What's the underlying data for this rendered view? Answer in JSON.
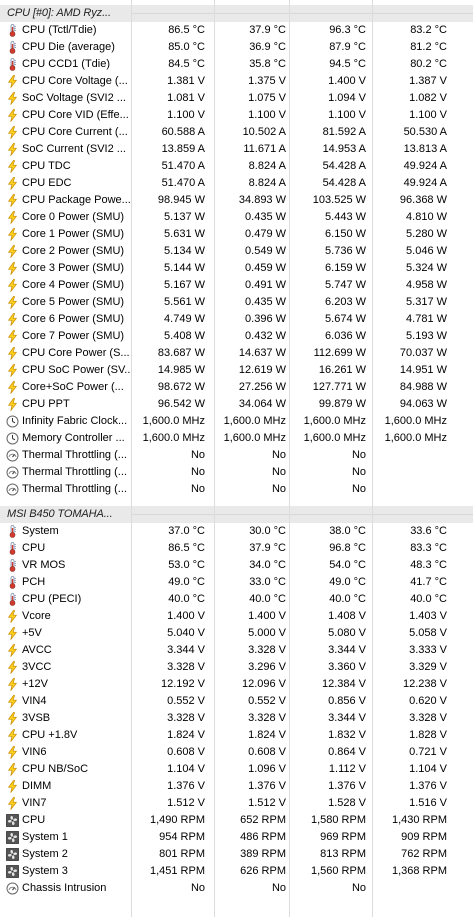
{
  "groups": [
    {
      "header": "CPU [#0]: AMD Ryz...",
      "rows": [
        {
          "icon": "thermometer-icon",
          "label": "CPU (Tctl/Tdie)",
          "values": [
            "86.5 °C",
            "37.9 °C",
            "96.3 °C",
            "83.2 °C"
          ]
        },
        {
          "icon": "thermometer-icon",
          "label": "CPU Die (average)",
          "values": [
            "85.0 °C",
            "36.9 °C",
            "87.9 °C",
            "81.2 °C"
          ]
        },
        {
          "icon": "thermometer-icon",
          "label": "CPU CCD1 (Tdie)",
          "values": [
            "84.5 °C",
            "35.8 °C",
            "94.5 °C",
            "80.2 °C"
          ]
        },
        {
          "icon": "lightning-icon",
          "label": "CPU Core Voltage (...",
          "values": [
            "1.381 V",
            "1.375 V",
            "1.400 V",
            "1.387 V"
          ]
        },
        {
          "icon": "lightning-icon",
          "label": "SoC Voltage (SVI2 ...",
          "values": [
            "1.081 V",
            "1.075 V",
            "1.094 V",
            "1.082 V"
          ]
        },
        {
          "icon": "lightning-icon",
          "label": "CPU Core VID (Effe...",
          "values": [
            "1.100 V",
            "1.100 V",
            "1.100 V",
            "1.100 V"
          ]
        },
        {
          "icon": "lightning-icon",
          "label": "CPU Core Current (...",
          "values": [
            "60.588 A",
            "10.502 A",
            "81.592 A",
            "50.530 A"
          ]
        },
        {
          "icon": "lightning-icon",
          "label": "SoC Current (SVI2 ...",
          "values": [
            "13.859 A",
            "11.671 A",
            "14.953 A",
            "13.813 A"
          ]
        },
        {
          "icon": "lightning-icon",
          "label": "CPU TDC",
          "values": [
            "51.470 A",
            "8.824 A",
            "54.428 A",
            "49.924 A"
          ]
        },
        {
          "icon": "lightning-icon",
          "label": "CPU EDC",
          "values": [
            "51.470 A",
            "8.824 A",
            "54.428 A",
            "49.924 A"
          ]
        },
        {
          "icon": "lightning-icon",
          "label": "CPU Package Powe...",
          "values": [
            "98.945 W",
            "34.893 W",
            "103.525 W",
            "96.368 W"
          ]
        },
        {
          "icon": "lightning-icon",
          "label": "Core 0 Power (SMU)",
          "values": [
            "5.137 W",
            "0.435 W",
            "5.443 W",
            "4.810 W"
          ]
        },
        {
          "icon": "lightning-icon",
          "label": "Core 1 Power (SMU)",
          "values": [
            "5.631 W",
            "0.479 W",
            "6.150 W",
            "5.280 W"
          ]
        },
        {
          "icon": "lightning-icon",
          "label": "Core 2 Power (SMU)",
          "values": [
            "5.134 W",
            "0.549 W",
            "5.736 W",
            "5.046 W"
          ]
        },
        {
          "icon": "lightning-icon",
          "label": "Core 3 Power (SMU)",
          "values": [
            "5.144 W",
            "0.459 W",
            "6.159 W",
            "5.324 W"
          ]
        },
        {
          "icon": "lightning-icon",
          "label": "Core 4 Power (SMU)",
          "values": [
            "5.167 W",
            "0.491 W",
            "5.747 W",
            "4.958 W"
          ]
        },
        {
          "icon": "lightning-icon",
          "label": "Core 5 Power (SMU)",
          "values": [
            "5.561 W",
            "0.435 W",
            "6.203 W",
            "5.317 W"
          ]
        },
        {
          "icon": "lightning-icon",
          "label": "Core 6 Power (SMU)",
          "values": [
            "4.749 W",
            "0.396 W",
            "5.674 W",
            "4.781 W"
          ]
        },
        {
          "icon": "lightning-icon",
          "label": "Core 7 Power (SMU)",
          "values": [
            "5.408 W",
            "0.432 W",
            "6.036 W",
            "5.193 W"
          ]
        },
        {
          "icon": "lightning-icon",
          "label": "CPU Core Power (S...",
          "values": [
            "83.687 W",
            "14.637 W",
            "112.699 W",
            "70.037 W"
          ]
        },
        {
          "icon": "lightning-icon",
          "label": "CPU SoC Power (SV...",
          "values": [
            "14.985 W",
            "12.619 W",
            "16.261 W",
            "14.951 W"
          ]
        },
        {
          "icon": "lightning-icon",
          "label": "Core+SoC Power (...",
          "values": [
            "98.672 W",
            "27.256 W",
            "127.771 W",
            "84.988 W"
          ]
        },
        {
          "icon": "lightning-icon",
          "label": "CPU PPT",
          "values": [
            "96.542 W",
            "34.064 W",
            "99.879 W",
            "94.063 W"
          ]
        },
        {
          "icon": "clock-icon",
          "label": "Infinity Fabric Clock...",
          "values": [
            "1,600.0 MHz",
            "1,600.0 MHz",
            "1,600.0 MHz",
            "1,600.0 MHz"
          ]
        },
        {
          "icon": "clock-icon",
          "label": "Memory Controller ...",
          "values": [
            "1,600.0 MHz",
            "1,600.0 MHz",
            "1,600.0 MHz",
            "1,600.0 MHz"
          ]
        },
        {
          "icon": "gauge-icon",
          "label": "Thermal Throttling (...",
          "values": [
            "No",
            "No",
            "No",
            ""
          ]
        },
        {
          "icon": "gauge-icon",
          "label": "Thermal Throttling (...",
          "values": [
            "No",
            "No",
            "No",
            ""
          ]
        },
        {
          "icon": "gauge-icon",
          "label": "Thermal Throttling (...",
          "values": [
            "No",
            "No",
            "No",
            ""
          ]
        }
      ]
    },
    {
      "header": "MSI B450 TOMAHA...",
      "rows": [
        {
          "icon": "thermometer-icon",
          "label": "System",
          "values": [
            "37.0 °C",
            "30.0 °C",
            "38.0 °C",
            "33.6 °C"
          ]
        },
        {
          "icon": "thermometer-icon",
          "label": "CPU",
          "values": [
            "86.5 °C",
            "37.9 °C",
            "96.8 °C",
            "83.3 °C"
          ]
        },
        {
          "icon": "thermometer-icon",
          "label": "VR MOS",
          "values": [
            "53.0 °C",
            "34.0 °C",
            "54.0 °C",
            "48.3 °C"
          ]
        },
        {
          "icon": "thermometer-icon",
          "label": "PCH",
          "values": [
            "49.0 °C",
            "33.0 °C",
            "49.0 °C",
            "41.7 °C"
          ]
        },
        {
          "icon": "thermometer-icon",
          "label": "CPU (PECI)",
          "values": [
            "40.0 °C",
            "40.0 °C",
            "40.0 °C",
            "40.0 °C"
          ]
        },
        {
          "icon": "lightning-icon",
          "label": "Vcore",
          "values": [
            "1.400 V",
            "1.400 V",
            "1.408 V",
            "1.403 V"
          ]
        },
        {
          "icon": "lightning-icon",
          "label": "+5V",
          "values": [
            "5.040 V",
            "5.000 V",
            "5.080 V",
            "5.058 V"
          ]
        },
        {
          "icon": "lightning-icon",
          "label": "AVCC",
          "values": [
            "3.344 V",
            "3.328 V",
            "3.344 V",
            "3.333 V"
          ]
        },
        {
          "icon": "lightning-icon",
          "label": "3VCC",
          "values": [
            "3.328 V",
            "3.296 V",
            "3.360 V",
            "3.329 V"
          ]
        },
        {
          "icon": "lightning-icon",
          "label": "+12V",
          "values": [
            "12.192 V",
            "12.096 V",
            "12.384 V",
            "12.238 V"
          ]
        },
        {
          "icon": "lightning-icon",
          "label": "VIN4",
          "values": [
            "0.552 V",
            "0.552 V",
            "0.856 V",
            "0.620 V"
          ]
        },
        {
          "icon": "lightning-icon",
          "label": "3VSB",
          "values": [
            "3.328 V",
            "3.328 V",
            "3.344 V",
            "3.328 V"
          ]
        },
        {
          "icon": "lightning-icon",
          "label": "CPU +1.8V",
          "values": [
            "1.824 V",
            "1.824 V",
            "1.832 V",
            "1.828 V"
          ]
        },
        {
          "icon": "lightning-icon",
          "label": "VIN6",
          "values": [
            "0.608 V",
            "0.608 V",
            "0.864 V",
            "0.721 V"
          ]
        },
        {
          "icon": "lightning-icon",
          "label": "CPU NB/SoC",
          "values": [
            "1.104 V",
            "1.096 V",
            "1.112 V",
            "1.104 V"
          ]
        },
        {
          "icon": "lightning-icon",
          "label": "DIMM",
          "values": [
            "1.376 V",
            "1.376 V",
            "1.376 V",
            "1.376 V"
          ]
        },
        {
          "icon": "lightning-icon",
          "label": "VIN7",
          "values": [
            "1.512 V",
            "1.512 V",
            "1.528 V",
            "1.516 V"
          ]
        },
        {
          "icon": "fan-icon",
          "label": "CPU",
          "values": [
            "1,490 RPM",
            "652 RPM",
            "1,580 RPM",
            "1,430 RPM"
          ]
        },
        {
          "icon": "fan-icon",
          "label": "System 1",
          "values": [
            "954 RPM",
            "486 RPM",
            "969 RPM",
            "909 RPM"
          ]
        },
        {
          "icon": "fan-icon",
          "label": "System 2",
          "values": [
            "801 RPM",
            "389 RPM",
            "813 RPM",
            "762 RPM"
          ]
        },
        {
          "icon": "fan-icon",
          "label": "System 3",
          "values": [
            "1,451 RPM",
            "626 RPM",
            "1,560 RPM",
            "1,368 RPM"
          ]
        },
        {
          "icon": "gauge-icon",
          "label": "Chassis Intrusion",
          "values": [
            "No",
            "No",
            "No",
            ""
          ]
        }
      ]
    }
  ]
}
